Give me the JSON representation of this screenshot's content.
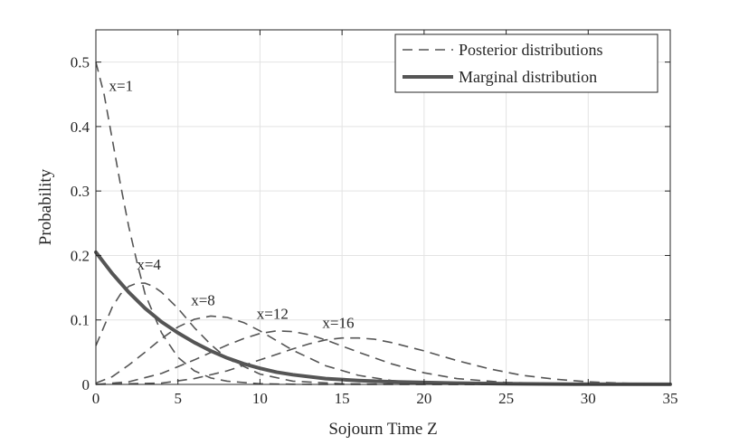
{
  "chart_data": {
    "type": "line",
    "xlabel": "Sojourn Time Z",
    "ylabel": "Probability",
    "xlim": [
      0,
      35
    ],
    "ylim": [
      0,
      0.55
    ],
    "xticks": [
      0,
      5,
      10,
      15,
      20,
      25,
      30,
      35
    ],
    "yticks": [
      0,
      0.1,
      0.2,
      0.3,
      0.4,
      0.5
    ],
    "grid": true,
    "legend": {
      "position": "top-right",
      "entries": [
        {
          "label": "Posterior distributions",
          "style": "dashed"
        },
        {
          "label": "Marginal distribution",
          "style": "solid-thick"
        }
      ]
    },
    "series": [
      {
        "name": "Posterior x=1",
        "style": "dashed",
        "x": [
          0,
          0.5,
          1,
          1.5,
          2,
          2.5,
          3,
          4,
          5,
          6,
          7,
          8,
          10,
          12,
          15,
          20,
          25,
          30,
          35
        ],
        "y": [
          0.5,
          0.45,
          0.38,
          0.31,
          0.245,
          0.19,
          0.14,
          0.08,
          0.042,
          0.021,
          0.01,
          0.005,
          0.001,
          0.0002,
          0,
          0,
          0,
          0,
          0
        ]
      },
      {
        "name": "Posterior x=4",
        "style": "dashed",
        "x": [
          0,
          0.5,
          1,
          1.5,
          2,
          2.5,
          3,
          3.5,
          4,
          5,
          6,
          7,
          8,
          10,
          12,
          15,
          20,
          25,
          30,
          35
        ],
        "y": [
          0.06,
          0.09,
          0.12,
          0.14,
          0.152,
          0.157,
          0.157,
          0.152,
          0.143,
          0.118,
          0.088,
          0.062,
          0.04,
          0.016,
          0.005,
          0.001,
          0,
          0,
          0,
          0
        ]
      },
      {
        "name": "Posterior x=8",
        "style": "dashed",
        "x": [
          0,
          1,
          2,
          3,
          4,
          5,
          6,
          7,
          8,
          9,
          10,
          11,
          12,
          14,
          16,
          18,
          20,
          25,
          30,
          35
        ],
        "y": [
          0.002,
          0.012,
          0.03,
          0.05,
          0.071,
          0.089,
          0.101,
          0.106,
          0.104,
          0.096,
          0.083,
          0.068,
          0.053,
          0.029,
          0.014,
          0.006,
          0.002,
          0,
          0,
          0
        ]
      },
      {
        "name": "Posterior x=12",
        "style": "dashed",
        "x": [
          0,
          2,
          4,
          6,
          8,
          9,
          10,
          11,
          12,
          13,
          14,
          16,
          18,
          20,
          22,
          25,
          30,
          35
        ],
        "y": [
          0,
          0.004,
          0.017,
          0.038,
          0.061,
          0.071,
          0.079,
          0.083,
          0.082,
          0.077,
          0.069,
          0.05,
          0.032,
          0.018,
          0.009,
          0.003,
          0,
          0
        ]
      },
      {
        "name": "Posterior x=16",
        "style": "dashed",
        "x": [
          0,
          4,
          6,
          8,
          10,
          12,
          13,
          14,
          15,
          16,
          17,
          18,
          20,
          22,
          24,
          26,
          28,
          30,
          32,
          35
        ],
        "y": [
          0,
          0.002,
          0.009,
          0.021,
          0.038,
          0.055,
          0.063,
          0.069,
          0.072,
          0.072,
          0.07,
          0.065,
          0.052,
          0.037,
          0.024,
          0.014,
          0.008,
          0.004,
          0.002,
          0
        ]
      },
      {
        "name": "Marginal distribution",
        "style": "solid-thick",
        "x": [
          0,
          1,
          2,
          3,
          4,
          5,
          6,
          7,
          8,
          9,
          10,
          11,
          12,
          14,
          16,
          18,
          20,
          22,
          25,
          30,
          35
        ],
        "y": [
          0.205,
          0.172,
          0.143,
          0.118,
          0.097,
          0.08,
          0.065,
          0.052,
          0.041,
          0.032,
          0.025,
          0.019,
          0.015,
          0.009,
          0.006,
          0.004,
          0.003,
          0.002,
          0.001,
          0.0003,
          0.0001
        ]
      }
    ],
    "annotations": [
      {
        "text": "x=1",
        "x": 0.8,
        "y": 0.455
      },
      {
        "text": "x=4",
        "x": 2.5,
        "y": 0.178
      },
      {
        "text": "x=8",
        "x": 5.8,
        "y": 0.123
      },
      {
        "text": "x=12",
        "x": 9.8,
        "y": 0.102
      },
      {
        "text": "x=16",
        "x": 13.8,
        "y": 0.088
      }
    ]
  }
}
